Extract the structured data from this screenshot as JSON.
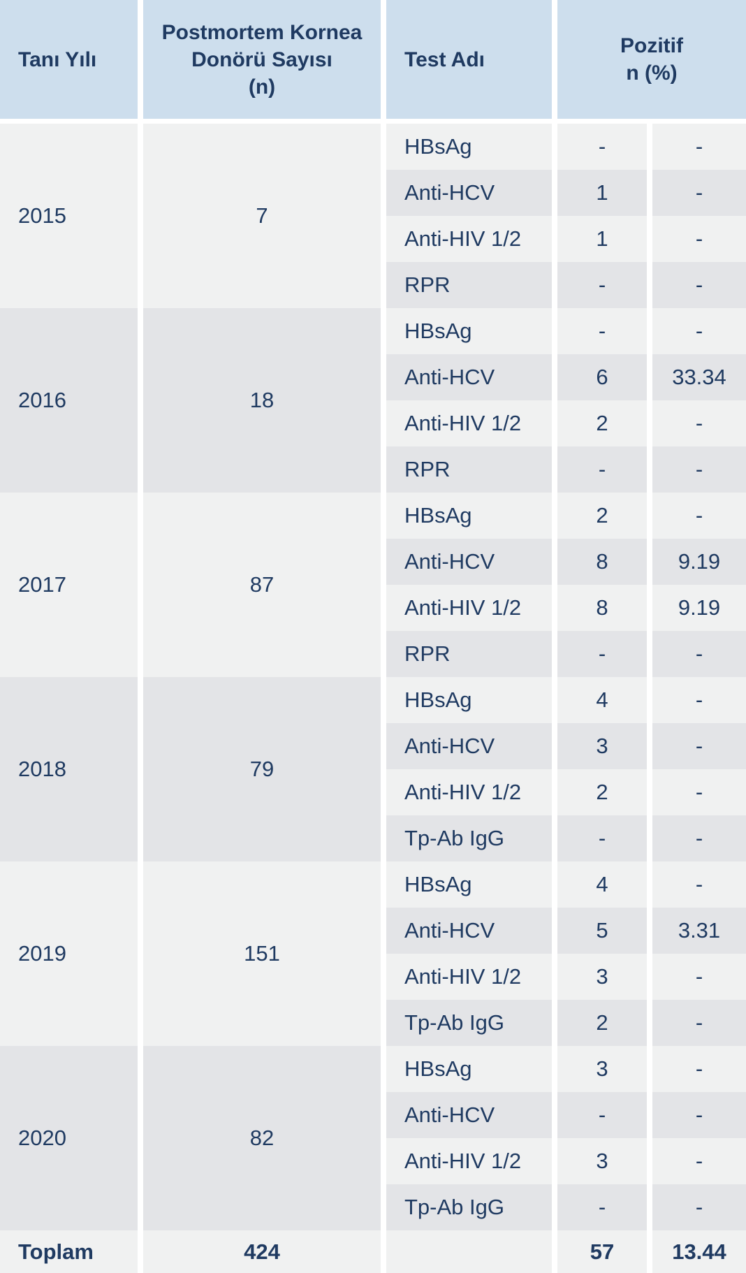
{
  "header": {
    "year": "Tanı Yılı",
    "donors": "Postmortem Kornea\nDonörü Sayısı\n(n)",
    "test": "Test Adı",
    "positive": "Pozitif\nn (%)"
  },
  "groups": [
    {
      "year": "2015",
      "donors": "7",
      "tests": [
        {
          "name": "HBsAg",
          "n": "-",
          "pct": "-"
        },
        {
          "name": "Anti-HCV",
          "n": "1",
          "pct": "-"
        },
        {
          "name": "Anti-HIV 1/2",
          "n": "1",
          "pct": "-"
        },
        {
          "name": "RPR",
          "n": "-",
          "pct": "-"
        }
      ]
    },
    {
      "year": "2016",
      "donors": "18",
      "tests": [
        {
          "name": "HBsAg",
          "n": "-",
          "pct": "-"
        },
        {
          "name": "Anti-HCV",
          "n": "6",
          "pct": "33.34"
        },
        {
          "name": "Anti-HIV 1/2",
          "n": "2",
          "pct": "-"
        },
        {
          "name": "RPR",
          "n": "-",
          "pct": "-"
        }
      ]
    },
    {
      "year": "2017",
      "donors": "87",
      "tests": [
        {
          "name": "HBsAg",
          "n": "2",
          "pct": "-"
        },
        {
          "name": "Anti-HCV",
          "n": "8",
          "pct": "9.19"
        },
        {
          "name": "Anti-HIV 1/2",
          "n": "8",
          "pct": "9.19"
        },
        {
          "name": "RPR",
          "n": "-",
          "pct": "-"
        }
      ]
    },
    {
      "year": "2018",
      "donors": "79",
      "tests": [
        {
          "name": "HBsAg",
          "n": "4",
          "pct": "-"
        },
        {
          "name": "Anti-HCV",
          "n": "3",
          "pct": "-"
        },
        {
          "name": "Anti-HIV 1/2",
          "n": "2",
          "pct": "-"
        },
        {
          "name": "Tp-Ab IgG",
          "n": "-",
          "pct": "-"
        }
      ]
    },
    {
      "year": "2019",
      "donors": "151",
      "tests": [
        {
          "name": "HBsAg",
          "n": "4",
          "pct": "-"
        },
        {
          "name": "Anti-HCV",
          "n": "5",
          "pct": "3.31"
        },
        {
          "name": "Anti-HIV 1/2",
          "n": "3",
          "pct": "-"
        },
        {
          "name": "Tp-Ab IgG",
          "n": "2",
          "pct": "-"
        }
      ]
    },
    {
      "year": "2020",
      "donors": "82",
      "tests": [
        {
          "name": "HBsAg",
          "n": "3",
          "pct": "-"
        },
        {
          "name": "Anti-HCV",
          "n": "-",
          "pct": "-"
        },
        {
          "name": "Anti-HIV 1/2",
          "n": "3",
          "pct": "-"
        },
        {
          "name": "Tp-Ab IgG",
          "n": "-",
          "pct": "-"
        }
      ]
    }
  ],
  "total": {
    "label": "Toplam",
    "donors": "424",
    "test": "",
    "n": "57",
    "pct": "13.44"
  },
  "colors": {
    "header_bg": "#cddeed",
    "row_light": "#f0f1f1",
    "row_dark": "#e3e4e7",
    "text": "#1f3a61"
  }
}
